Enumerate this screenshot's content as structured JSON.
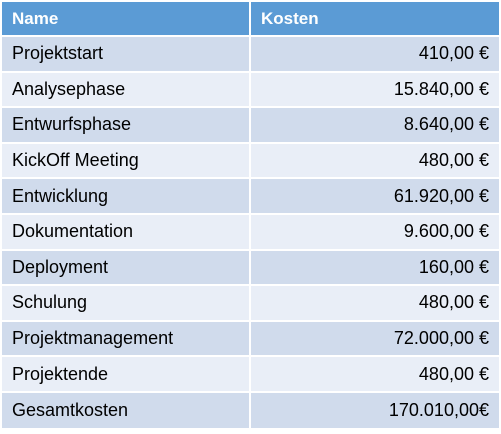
{
  "table": {
    "headers": {
      "name": "Name",
      "cost": "Kosten"
    },
    "rows": [
      {
        "name": "Projektstart",
        "cost": "410,00 €"
      },
      {
        "name": "Analysephase",
        "cost": "15.840,00 €"
      },
      {
        "name": "Entwurfsphase",
        "cost": "8.640,00 €"
      },
      {
        "name": "KickOff Meeting",
        "cost": "480,00 €"
      },
      {
        "name": "Entwicklung",
        "cost": "61.920,00 €"
      },
      {
        "name": "Dokumentation",
        "cost": "9.600,00 €"
      },
      {
        "name": "Deployment",
        "cost": "160,00 €"
      },
      {
        "name": "Schulung",
        "cost": "480,00 €"
      },
      {
        "name": "Projektmanagement",
        "cost": "72.000,00 €"
      },
      {
        "name": "Projektende",
        "cost": "480,00 €"
      },
      {
        "name": "Gesamtkosten",
        "cost": "170.010,00€"
      }
    ]
  },
  "colors": {
    "header_bg": "#5b9bd5",
    "row_odd": "#d0dbec",
    "row_even": "#e9eef7"
  }
}
